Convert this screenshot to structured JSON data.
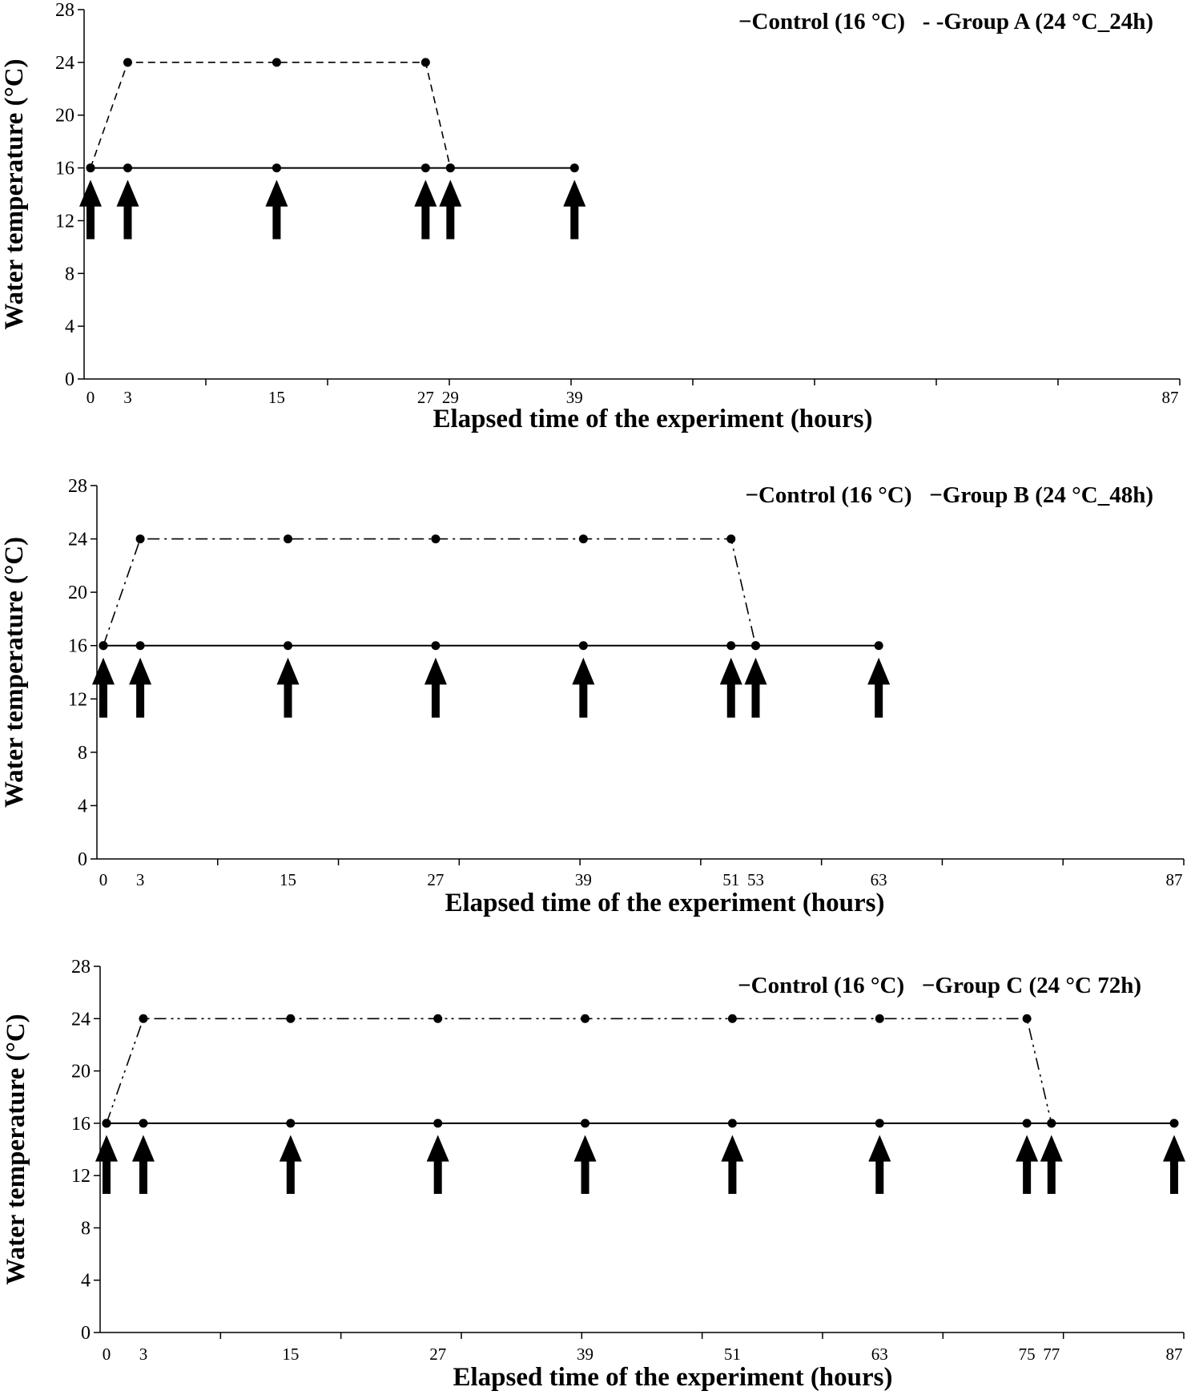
{
  "chart_data": [
    {
      "type": "line",
      "xlabel": "Elapsed time of the experiment (hours)",
      "ylabel": "Water temperature (°C)",
      "ylim": [
        0,
        28
      ],
      "yticks": [
        0,
        4,
        8,
        12,
        16,
        20,
        24,
        28
      ],
      "xlim": [
        0,
        87
      ],
      "xtick_labels": [
        0,
        3,
        15,
        27,
        29,
        39,
        87
      ],
      "grid": false,
      "legend_position": "top-right",
      "legend": [
        "−Control (16 °C)",
        "- -Group A (24 °C_24h)"
      ],
      "series": [
        {
          "name": "Control (16 °C)",
          "style": "solid",
          "x": [
            0,
            3,
            15,
            27,
            29,
            39
          ],
          "y": [
            16,
            16,
            16,
            16,
            16,
            16
          ]
        },
        {
          "name": "Group A (24 °C_24h)",
          "style": "dashed",
          "x": [
            0,
            3,
            15,
            27,
            29
          ],
          "y": [
            16,
            24,
            24,
            24,
            16
          ]
        }
      ],
      "arrows_at_x": [
        0,
        3,
        15,
        27,
        29,
        39
      ]
    },
    {
      "type": "line",
      "xlabel": "Elapsed time of the experiment (hours)",
      "ylabel": "Water temperature (°C)",
      "ylim": [
        0,
        28
      ],
      "yticks": [
        0,
        4,
        8,
        12,
        16,
        20,
        24,
        28
      ],
      "xlim": [
        0,
        87
      ],
      "xtick_labels": [
        0,
        3,
        15,
        27,
        39,
        51,
        53,
        63,
        87
      ],
      "grid": false,
      "legend_position": "top-right",
      "legend": [
        "−Control (16 °C)",
        "−Group B (24 °C_48h)"
      ],
      "series": [
        {
          "name": "Control (16 °C)",
          "style": "solid",
          "x": [
            0,
            3,
            15,
            27,
            39,
            51,
            53,
            63
          ],
          "y": [
            16,
            16,
            16,
            16,
            16,
            16,
            16,
            16
          ]
        },
        {
          "name": "Group B (24 °C_48h)",
          "style": "dash-dot",
          "x": [
            0,
            3,
            15,
            27,
            39,
            51,
            53
          ],
          "y": [
            16,
            24,
            24,
            24,
            24,
            24,
            16
          ]
        }
      ],
      "arrows_at_x": [
        0,
        3,
        15,
        27,
        39,
        51,
        53,
        63
      ]
    },
    {
      "type": "line",
      "xlabel": "Elapsed time of the experiment (hours)",
      "ylabel": "Water temperature (°C)",
      "ylim": [
        0,
        28
      ],
      "yticks": [
        0,
        4,
        8,
        12,
        16,
        20,
        24,
        28
      ],
      "xlim": [
        0,
        87
      ],
      "xtick_labels": [
        0,
        3,
        15,
        27,
        39,
        51,
        63,
        75,
        77,
        87
      ],
      "grid": false,
      "legend_position": "top-right",
      "legend": [
        "−Control (16 °C)",
        "−Group C (24 °C  72h)"
      ],
      "series": [
        {
          "name": "Control (16 °C)",
          "style": "solid",
          "x": [
            0,
            3,
            15,
            27,
            39,
            51,
            63,
            75,
            77,
            87
          ],
          "y": [
            16,
            16,
            16,
            16,
            16,
            16,
            16,
            16,
            16,
            16
          ]
        },
        {
          "name": "Group C (24 °C  72h)",
          "style": "dash-dot-dot",
          "x": [
            0,
            3,
            15,
            27,
            39,
            51,
            63,
            75,
            77
          ],
          "y": [
            16,
            24,
            24,
            24,
            24,
            24,
            24,
            24,
            16
          ]
        }
      ],
      "arrows_at_x": [
        0,
        3,
        15,
        27,
        39,
        51,
        63,
        75,
        77,
        87
      ]
    }
  ]
}
